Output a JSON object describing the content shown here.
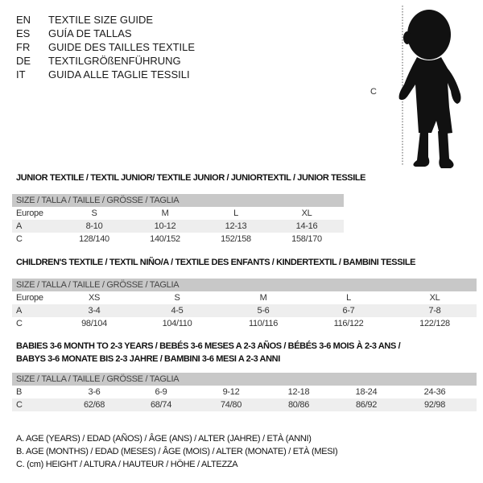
{
  "languages": [
    {
      "code": "EN",
      "title": "TEXTILE SIZE GUIDE"
    },
    {
      "code": "ES",
      "title": "GUÍA DE TALLAS"
    },
    {
      "code": "FR",
      "title": "GUIDE DES TAILLES TEXTILE"
    },
    {
      "code": "DE",
      "title": "TEXTILGRÖßENFÜHRUNG"
    },
    {
      "code": "IT",
      "title": "GUIDA ALLE TAGLIE TESSILI"
    }
  ],
  "figure": {
    "height_label": "C",
    "icon": "child-silhouette"
  },
  "size_header": "SIZE / TALLA / TAILLE / GRÖSSE / TAGLIA",
  "junior": {
    "title": "JUNIOR TEXTILE / TEXTIL JUNIOR/ TEXTILE JUNIOR / JUNIORTEXTIL / JUNIOR TESSILE",
    "rows": [
      {
        "label": "Europe",
        "values": [
          "S",
          "M",
          "L",
          "XL"
        ]
      },
      {
        "label": "A",
        "values": [
          "8-10",
          "10-12",
          "12-13",
          "14-16"
        ]
      },
      {
        "label": "C",
        "values": [
          "128/140",
          "140/152",
          "152/158",
          "158/170"
        ]
      }
    ]
  },
  "children": {
    "title": "CHILDREN'S TEXTILE / TEXTIL NIÑO/A / TEXTILE DES ENFANTS / KINDERTEXTIL / BAMBINI TESSILE",
    "rows": [
      {
        "label": "Europe",
        "values": [
          "XS",
          "S",
          "M",
          "L",
          "XL"
        ]
      },
      {
        "label": "A",
        "values": [
          "3-4",
          "4-5",
          "5-6",
          "6-7",
          "7-8"
        ]
      },
      {
        "label": "C",
        "values": [
          "98/104",
          "104/110",
          "110/116",
          "116/122",
          "122/128"
        ]
      }
    ]
  },
  "babies": {
    "title_line1": "BABIES 3-6 MONTH TO 2-3 YEARS / BEBÉS 3-6 MESES A 2-3 AÑOS / BÉBÉS 3-6 MOIS À 2-3 ANS /",
    "title_line2": "BABYS 3-6 MONATE BIS 2-3 JAHRE / BAMBINI 3-6 MESI A 2-3 ANNI",
    "rows": [
      {
        "label": "B",
        "values": [
          "3-6",
          "6-9",
          "9-12",
          "12-18",
          "18-24",
          "24-36"
        ]
      },
      {
        "label": "C",
        "values": [
          "62/68",
          "68/74",
          "74/80",
          "80/86",
          "86/92",
          "92/98"
        ]
      }
    ]
  },
  "legend": [
    "A. AGE (YEARS) / EDAD (AÑOS) / ÂGE (ANS) / ALTER (JAHRE) / ETÀ (ANNI)",
    "B. AGE (MONTHS) / EDAD (MESES) / ÂGE (MOIS) / ALTER (MONATE) / ETÀ (MESI)",
    "C. (cm) HEIGHT / ALTURA / HAUTEUR / HÖHE / ALTEZZA"
  ]
}
